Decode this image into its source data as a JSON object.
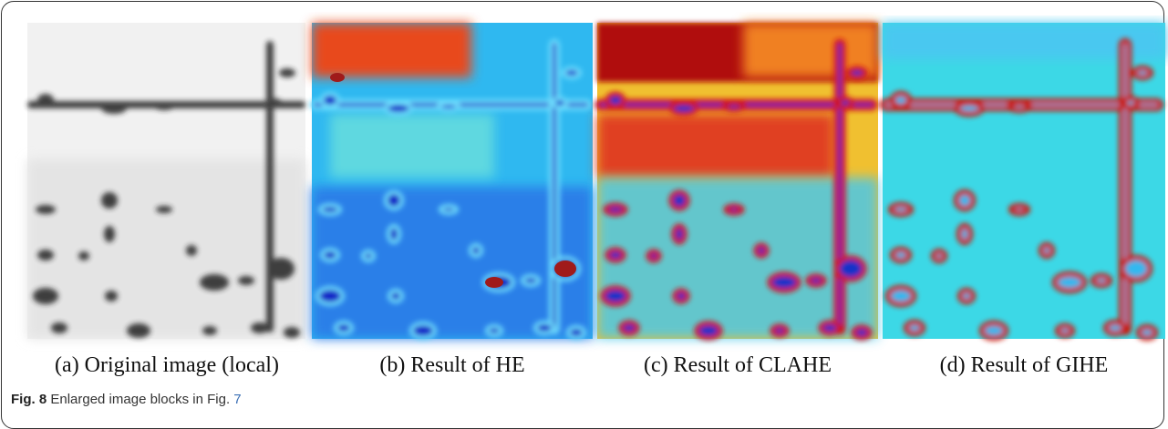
{
  "panels": [
    {
      "caption": "(a) Original image (local)"
    },
    {
      "caption": "(b) Result of HE"
    },
    {
      "caption": "(c) Result of CLAHE"
    },
    {
      "caption": "(d) Result of GIHE"
    }
  ],
  "figure_caption": {
    "label": "Fig. 8",
    "text": "Enlarged image blocks in Fig.",
    "ref": "7"
  }
}
